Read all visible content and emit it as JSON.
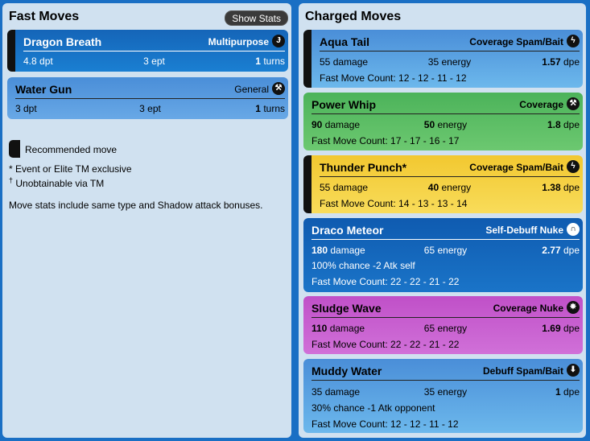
{
  "fast": {
    "title": "Fast Moves",
    "show_stats": "Show Stats",
    "moves": [
      {
        "name": "Dragon Breath",
        "archetype": "Multipurpose",
        "icon": "Ɉ",
        "stat1": "4.8 dpt",
        "stat2": "3 ept",
        "stat3_num": "1",
        "stat3_unit": " turns",
        "recommended": true
      },
      {
        "name": "Water Gun",
        "archetype": "General",
        "icon": "⚒",
        "stat1": "3 dpt",
        "stat2": "3 ept",
        "stat3_num": "1",
        "stat3_unit": " turns",
        "recommended": false
      }
    ],
    "legend": "Recommended move",
    "note1": "* Event or Elite TM exclusive",
    "note2_mark": "†",
    "note2": " Unobtainable via TM",
    "note3": "Move stats include same type and Shadow attack bonuses."
  },
  "charged": {
    "title": "Charged Moves",
    "moves": [
      {
        "name": "Aqua Tail",
        "archetype": "Coverage Spam/Bait",
        "icon": "ϟ",
        "damage_num": "55",
        "damage_unit": " damage",
        "energy_num": "35",
        "energy_unit": " energy",
        "dpe_num": "1.57",
        "dpe_unit": " dpe",
        "count": "Fast Move Count: 12 - 12 - 11 - 12"
      },
      {
        "name": "Power Whip",
        "archetype": "Coverage",
        "icon": "⚒",
        "damage_num": "90",
        "damage_unit": " damage",
        "energy_num": "50",
        "energy_unit": " energy",
        "dpe_num": "1.8",
        "dpe_unit": " dpe",
        "count": "Fast Move Count: 17 - 17 - 16 - 17"
      },
      {
        "name": "Thunder Punch*",
        "archetype": "Coverage Spam/Bait",
        "icon": "ϟ",
        "damage_num": "55",
        "damage_unit": " damage",
        "energy_num": "40",
        "energy_unit": " energy",
        "dpe_num": "1.38",
        "dpe_unit": " dpe",
        "count": "Fast Move Count: 14 - 13 - 13 - 14"
      },
      {
        "name": "Draco Meteor",
        "archetype": "Self-Debuff Nuke",
        "icon": "∩",
        "damage_num": "180",
        "damage_unit": " damage",
        "energy_num": "65",
        "energy_unit": " energy",
        "dpe_num": "2.77",
        "dpe_unit": " dpe",
        "extra": "100% chance -2 Atk self",
        "count": "Fast Move Count: 22 - 22 - 21 - 22"
      },
      {
        "name": "Sludge Wave",
        "archetype": "Coverage Nuke",
        "icon": "✸",
        "damage_num": "110",
        "damage_unit": " damage",
        "energy_num": "65",
        "energy_unit": " energy",
        "dpe_num": "1.69",
        "dpe_unit": " dpe",
        "count": "Fast Move Count: 22 - 22 - 21 - 22"
      },
      {
        "name": "Muddy Water",
        "archetype": "Debuff Spam/Bait",
        "icon": "⬇",
        "damage_num": "35",
        "damage_unit": " damage",
        "energy_num": "35",
        "energy_unit": " energy",
        "dpe_num": "1",
        "dpe_unit": " dpe",
        "extra": "30% chance -1 Atk opponent",
        "count": "Fast Move Count: 12 - 12 - 11 - 12"
      }
    ]
  }
}
